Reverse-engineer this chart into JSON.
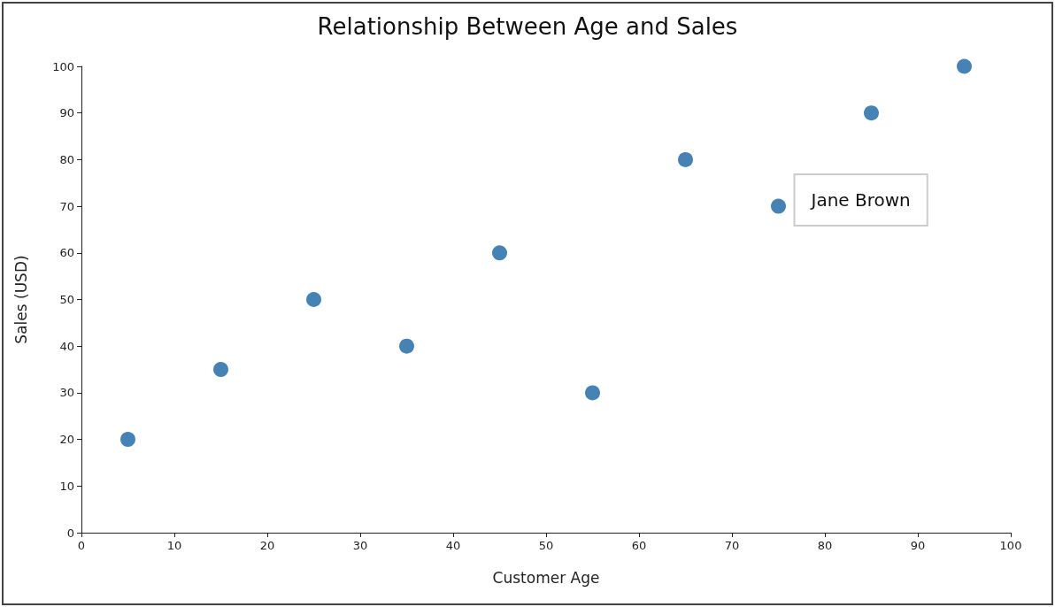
{
  "chart_data": {
    "type": "scatter",
    "title": "Relationship Between Age and Sales",
    "xlabel": "Customer Age",
    "ylabel": "Sales (USD)",
    "x": [
      5,
      15,
      25,
      35,
      45,
      55,
      65,
      75,
      85,
      95
    ],
    "values": [
      20,
      35,
      50,
      40,
      60,
      30,
      80,
      70,
      90,
      100
    ],
    "color": "#4682b4",
    "xlim": [
      0,
      100
    ],
    "xticks": [
      0,
      10,
      20,
      30,
      40,
      50,
      60,
      70,
      80,
      90,
      100
    ],
    "ylim": [
      0,
      100
    ],
    "yticks": [
      0,
      10,
      20,
      30,
      40,
      50,
      60,
      70,
      80,
      90,
      100
    ],
    "grid": false,
    "marker": "circle",
    "annotations": [
      {
        "text": "Jane Brown",
        "x": 75,
        "y": 70
      }
    ]
  }
}
